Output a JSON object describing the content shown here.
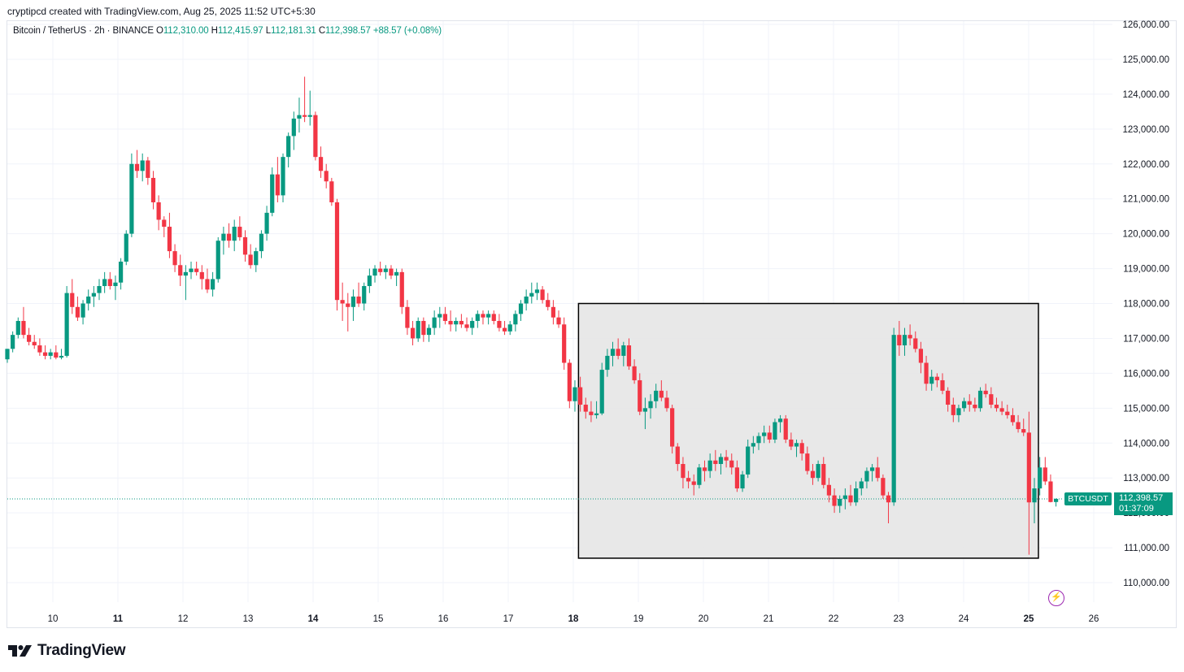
{
  "header": {
    "credit": "cryptipcd created with TradingView.com, Aug 25, 2025 11:52 UTC+5:30"
  },
  "legend": {
    "symbol": "Bitcoin / TetherUS · 2h · BINANCE",
    "open_label": "O",
    "open": "112,310.00",
    "high_label": "H",
    "high": "112,415.97",
    "low_label": "L",
    "low": "112,181.31",
    "close_label": "C",
    "close": "112,398.57",
    "change": "+88.57 (+0.08%)"
  },
  "price_tag": {
    "symbol": "BTCUSDT",
    "price": "112,398.57",
    "countdown": "01:37:09"
  },
  "footer": {
    "brand": "TradingView",
    "logo_icon": "tradingview-logo-icon"
  },
  "colors": {
    "up": "#089981",
    "down": "#f23645",
    "box_fill": "#e6e6e6",
    "box_border": "#000000",
    "grid": "#f0f3fa"
  },
  "chart_data": {
    "type": "candlestick",
    "ylim": [
      109500,
      126300
    ],
    "yticks": [
      "110,000.00",
      "111,000.00",
      "112,000.00",
      "113,000.00",
      "114,000.00",
      "115,000.00",
      "116,000.00",
      "117,000.00",
      "118,000.00",
      "119,000.00",
      "120,000.00",
      "121,000.00",
      "122,000.00",
      "123,000.00",
      "124,000.00",
      "125,000.00",
      "126,000.00"
    ],
    "xticks": [
      {
        "label": "10",
        "day": 10,
        "bold": false
      },
      {
        "label": "11",
        "day": 11,
        "bold": true
      },
      {
        "label": "12",
        "day": 12,
        "bold": false
      },
      {
        "label": "13",
        "day": 13,
        "bold": false
      },
      {
        "label": "14",
        "day": 14,
        "bold": true
      },
      {
        "label": "15",
        "day": 15,
        "bold": false
      },
      {
        "label": "16",
        "day": 16,
        "bold": false
      },
      {
        "label": "17",
        "day": 17,
        "bold": false
      },
      {
        "label": "18",
        "day": 18,
        "bold": true
      },
      {
        "label": "19",
        "day": 19,
        "bold": false
      },
      {
        "label": "20",
        "day": 20,
        "bold": false
      },
      {
        "label": "21",
        "day": 21,
        "bold": false
      },
      {
        "label": "22",
        "day": 22,
        "bold": false
      },
      {
        "label": "23",
        "day": 23,
        "bold": false
      },
      {
        "label": "24",
        "day": 24,
        "bold": false
      },
      {
        "label": "25",
        "day": 25,
        "bold": true
      },
      {
        "label": "26",
        "day": 26,
        "bold": false
      }
    ],
    "start_day": 9.3,
    "candle_interval_days": 0.0833,
    "last_price": 112398.57,
    "highlight_box": {
      "day_from": 18.08,
      "day_to": 25.15,
      "price_from": 110700,
      "price_to": 118000
    },
    "candles": [
      [
        116400,
        116700,
        116300,
        116700
      ],
      [
        116700,
        117200,
        116600,
        117100
      ],
      [
        117100,
        117600,
        117000,
        117500
      ],
      [
        117500,
        117900,
        117000,
        117100
      ],
      [
        117100,
        117300,
        116800,
        116900
      ],
      [
        116900,
        117100,
        116700,
        116800
      ],
      [
        116800,
        117000,
        116500,
        116600
      ],
      [
        116600,
        116800,
        116400,
        116500
      ],
      [
        116500,
        116700,
        116400,
        116600
      ],
      [
        116600,
        116800,
        116400,
        116450
      ],
      [
        116450,
        116700,
        116400,
        116500
      ],
      [
        116500,
        118500,
        116450,
        118300
      ],
      [
        118300,
        118700,
        117700,
        117900
      ],
      [
        117900,
        118200,
        117500,
        117600
      ],
      [
        117600,
        118100,
        117400,
        118000
      ],
      [
        118000,
        118400,
        117800,
        118200
      ],
      [
        118200,
        118500,
        117900,
        118300
      ],
      [
        118300,
        118700,
        118100,
        118500
      ],
      [
        118500,
        118900,
        118300,
        118700
      ],
      [
        118700,
        118900,
        118400,
        118500
      ],
      [
        118500,
        118800,
        118100,
        118600
      ],
      [
        118600,
        119300,
        118400,
        119200
      ],
      [
        119200,
        120100,
        119100,
        120000
      ],
      [
        120000,
        122300,
        119900,
        122000
      ],
      [
        122000,
        122400,
        121600,
        121800
      ],
      [
        121800,
        122300,
        121500,
        122100
      ],
      [
        122100,
        122200,
        121400,
        121600
      ],
      [
        121600,
        121800,
        120700,
        120900
      ],
      [
        120900,
        121100,
        120100,
        120400
      ],
      [
        120400,
        120500,
        119900,
        120200
      ],
      [
        120200,
        120600,
        119300,
        119500
      ],
      [
        119500,
        119700,
        118900,
        119100
      ],
      [
        119100,
        119400,
        118500,
        118800
      ],
      [
        118800,
        119100,
        118100,
        118900
      ],
      [
        118900,
        119200,
        118700,
        119000
      ],
      [
        119000,
        119200,
        118800,
        118900
      ],
      [
        118900,
        119100,
        118400,
        118700
      ],
      [
        118700,
        119000,
        118300,
        118400
      ],
      [
        118400,
        118900,
        118200,
        118700
      ],
      [
        118700,
        119900,
        118600,
        119800
      ],
      [
        119800,
        120200,
        119400,
        120000
      ],
      [
        120000,
        120300,
        119600,
        119800
      ],
      [
        119800,
        120400,
        119500,
        120200
      ],
      [
        120200,
        120500,
        119800,
        119900
      ],
      [
        119900,
        120100,
        119200,
        119400
      ],
      [
        119400,
        119700,
        119000,
        119100
      ],
      [
        119100,
        119600,
        118900,
        119500
      ],
      [
        119500,
        120100,
        119300,
        120000
      ],
      [
        120000,
        120800,
        119800,
        120600
      ],
      [
        120600,
        121900,
        120500,
        121700
      ],
      [
        121700,
        122200,
        120900,
        121100
      ],
      [
        121100,
        122300,
        120900,
        122200
      ],
      [
        122200,
        122900,
        121900,
        122800
      ],
      [
        122800,
        123500,
        122400,
        123300
      ],
      [
        123300,
        123900,
        122900,
        123400
      ],
      [
        123400,
        124500,
        123200,
        123350
      ],
      [
        123350,
        124100,
        123100,
        123400
      ],
      [
        123400,
        123500,
        122100,
        122200
      ],
      [
        122200,
        122500,
        121600,
        121800
      ],
      [
        121800,
        122000,
        121300,
        121500
      ],
      [
        121500,
        121600,
        120800,
        120900
      ],
      [
        120900,
        121000,
        117800,
        118100
      ],
      [
        118100,
        118600,
        117500,
        118000
      ],
      [
        118000,
        118300,
        117200,
        117900
      ],
      [
        117900,
        118400,
        117500,
        118200
      ],
      [
        118200,
        118600,
        117900,
        118000
      ],
      [
        118000,
        118600,
        117800,
        118500
      ],
      [
        118500,
        119000,
        118300,
        118800
      ],
      [
        118800,
        119100,
        118600,
        119000
      ],
      [
        119000,
        119200,
        118800,
        118900
      ],
      [
        118900,
        119100,
        118700,
        119000
      ],
      [
        119000,
        119100,
        118700,
        118800
      ],
      [
        118800,
        119000,
        118500,
        118900
      ],
      [
        118900,
        119000,
        117700,
        117900
      ],
      [
        117900,
        118100,
        117100,
        117300
      ],
      [
        117300,
        117500,
        116800,
        117000
      ],
      [
        117000,
        117600,
        116900,
        117500
      ],
      [
        117500,
        117600,
        116900,
        117100
      ],
      [
        117100,
        117400,
        116900,
        117300
      ],
      [
        117300,
        117800,
        117100,
        117600
      ],
      [
        117600,
        117900,
        117300,
        117700
      ],
      [
        117700,
        117900,
        117400,
        117500
      ],
      [
        117500,
        117800,
        117200,
        117400
      ],
      [
        117400,
        117600,
        117200,
        117500
      ],
      [
        117500,
        117700,
        117300,
        117400
      ],
      [
        117400,
        117600,
        117200,
        117300
      ],
      [
        117300,
        117600,
        117100,
        117500
      ],
      [
        117500,
        117800,
        117300,
        117700
      ],
      [
        117700,
        117800,
        117400,
        117600
      ],
      [
        117600,
        117800,
        117400,
        117700
      ],
      [
        117700,
        117800,
        117400,
        117500
      ],
      [
        117500,
        117700,
        117200,
        117300
      ],
      [
        117300,
        117500,
        117100,
        117200
      ],
      [
        117200,
        117500,
        117100,
        117400
      ],
      [
        117400,
        117800,
        117200,
        117700
      ],
      [
        117700,
        118100,
        117500,
        118000
      ],
      [
        118000,
        118400,
        117800,
        118200
      ],
      [
        118200,
        118600,
        118000,
        118300
      ],
      [
        118300,
        118600,
        118100,
        118400
      ],
      [
        118400,
        118500,
        118000,
        118100
      ],
      [
        118100,
        118300,
        117800,
        117900
      ],
      [
        117900,
        118100,
        117400,
        117600
      ],
      [
        117600,
        117800,
        117300,
        117400
      ],
      [
        117400,
        117600,
        116100,
        116300
      ],
      [
        116300,
        116400,
        115000,
        115200
      ],
      [
        115200,
        115800,
        114900,
        115600
      ],
      [
        115600,
        115900,
        114900,
        115100
      ],
      [
        115100,
        115300,
        114700,
        114900
      ],
      [
        114900,
        115200,
        114600,
        114800
      ],
      [
        114800,
        115200,
        114700,
        114850
      ],
      [
        114850,
        116300,
        114800,
        116100
      ],
      [
        116100,
        116700,
        115900,
        116500
      ],
      [
        116500,
        116900,
        116200,
        116700
      ],
      [
        116700,
        117000,
        116400,
        116500
      ],
      [
        116500,
        116900,
        116200,
        116800
      ],
      [
        116800,
        117000,
        116100,
        116200
      ],
      [
        116200,
        116400,
        115700,
        115800
      ],
      [
        115800,
        116000,
        114800,
        114900
      ],
      [
        114900,
        115300,
        114400,
        115000
      ],
      [
        115000,
        115400,
        114700,
        115200
      ],
      [
        115200,
        115700,
        115000,
        115500
      ],
      [
        115500,
        115800,
        115200,
        115300
      ],
      [
        115300,
        115500,
        114900,
        115000
      ],
      [
        115000,
        115100,
        113700,
        113900
      ],
      [
        113900,
        114000,
        113200,
        113400
      ],
      [
        113400,
        113600,
        112700,
        113000
      ],
      [
        113000,
        113200,
        112700,
        112900
      ],
      [
        112900,
        113100,
        112500,
        112800
      ],
      [
        112800,
        113400,
        112700,
        113300
      ],
      [
        113300,
        113500,
        112900,
        113200
      ],
      [
        113200,
        113700,
        113000,
        113500
      ],
      [
        113500,
        113800,
        113200,
        113400
      ],
      [
        113400,
        113700,
        113100,
        113600
      ],
      [
        113600,
        113800,
        113300,
        113500
      ],
      [
        113500,
        113700,
        113100,
        113300
      ],
      [
        113300,
        113500,
        112600,
        112700
      ],
      [
        112700,
        113200,
        112600,
        113100
      ],
      [
        113100,
        114100,
        113000,
        113900
      ],
      [
        113900,
        114200,
        113700,
        114000
      ],
      [
        114000,
        114300,
        113800,
        114200
      ],
      [
        114200,
        114500,
        114000,
        114300
      ],
      [
        114300,
        114500,
        114000,
        114100
      ],
      [
        114100,
        114700,
        114000,
        114600
      ],
      [
        114600,
        114800,
        114300,
        114700
      ],
      [
        114700,
        114800,
        114000,
        114100
      ],
      [
        114100,
        114300,
        113800,
        113900
      ],
      [
        113900,
        114100,
        113600,
        114000
      ],
      [
        114000,
        114100,
        113500,
        113700
      ],
      [
        113700,
        113900,
        113100,
        113200
      ],
      [
        113200,
        113400,
        112800,
        113000
      ],
      [
        113000,
        113500,
        112900,
        113400
      ],
      [
        113400,
        113600,
        112700,
        112800
      ],
      [
        112800,
        113000,
        112300,
        112500
      ],
      [
        112500,
        112700,
        112000,
        112200
      ],
      [
        112200,
        112500,
        112000,
        112400
      ],
      [
        112400,
        112700,
        112100,
        112500
      ],
      [
        112500,
        112800,
        112200,
        112300
      ],
      [
        112300,
        112900,
        112200,
        112700
      ],
      [
        112700,
        113000,
        112500,
        112900
      ],
      [
        112900,
        113300,
        112700,
        113200
      ],
      [
        113200,
        113400,
        112900,
        113300
      ],
      [
        113300,
        113600,
        112900,
        113000
      ],
      [
        113000,
        113100,
        112400,
        112500
      ],
      [
        112500,
        112600,
        111700,
        112300
      ],
      [
        112300,
        117300,
        112200,
        117100
      ],
      [
        117100,
        117500,
        116500,
        116800
      ],
      [
        116800,
        117300,
        116500,
        117100
      ],
      [
        117100,
        117400,
        116800,
        117000
      ],
      [
        117000,
        117200,
        116600,
        116700
      ],
      [
        116700,
        116900,
        116000,
        116300
      ],
      [
        116300,
        116500,
        115500,
        115700
      ],
      [
        115700,
        116100,
        115500,
        115900
      ],
      [
        115900,
        116000,
        115600,
        115800
      ],
      [
        115800,
        116000,
        115400,
        115500
      ],
      [
        115500,
        115600,
        114900,
        115100
      ],
      [
        115100,
        115300,
        114600,
        114800
      ],
      [
        114800,
        115100,
        114600,
        115000
      ],
      [
        115000,
        115300,
        114900,
        115200
      ],
      [
        115200,
        115400,
        114900,
        115100
      ],
      [
        115100,
        115300,
        114900,
        115000
      ],
      [
        115000,
        115600,
        114900,
        115500
      ],
      [
        115500,
        115700,
        115300,
        115400
      ],
      [
        115400,
        115600,
        115000,
        115100
      ],
      [
        115100,
        115300,
        114900,
        115000
      ],
      [
        115000,
        115200,
        114800,
        114900
      ],
      [
        114900,
        115100,
        114700,
        114800
      ],
      [
        114800,
        115000,
        114500,
        114600
      ],
      [
        114600,
        114800,
        114300,
        114400
      ],
      [
        114400,
        114700,
        114200,
        114300
      ],
      [
        114300,
        114900,
        110800,
        112300
      ],
      [
        112300,
        113000,
        111700,
        112700
      ],
      [
        112700,
        113600,
        112500,
        113300
      ],
      [
        113300,
        113600,
        112800,
        112900
      ],
      [
        112900,
        113100,
        112300,
        112310
      ],
      [
        112310,
        112416,
        112181,
        112399
      ]
    ]
  }
}
